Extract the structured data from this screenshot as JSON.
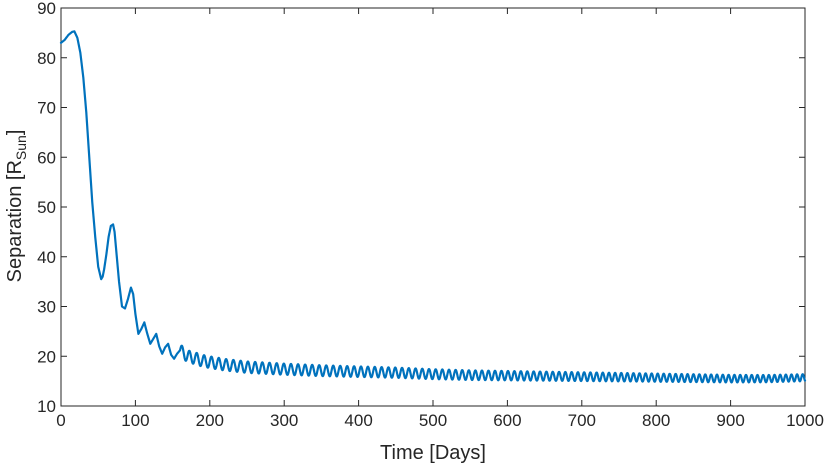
{
  "chart_data": {
    "type": "line",
    "xlabel": "Time [Days]",
    "ylabel": {
      "text": "Separation [R",
      "subscript": "Sun",
      "suffix": "]"
    },
    "xlim": [
      0,
      1000
    ],
    "ylim": [
      10,
      90
    ],
    "xticks": [
      0,
      100,
      200,
      300,
      400,
      500,
      600,
      700,
      800,
      900,
      1000
    ],
    "yticks": [
      10,
      20,
      30,
      40,
      50,
      60,
      70,
      80,
      90
    ],
    "grid": false,
    "line_color": "#0072BD",
    "series": [
      {
        "x": [
          0,
          5,
          10,
          15,
          18,
          22,
          26,
          30,
          34,
          38,
          42,
          46,
          50,
          54,
          56,
          58,
          61,
          64,
          67,
          70,
          72,
          75,
          78,
          82,
          86,
          90,
          94,
          97,
          100,
          104,
          108,
          112,
          116,
          120,
          124,
          128,
          132,
          136,
          140,
          144,
          148,
          152,
          156,
          160,
          170,
          180,
          190,
          200,
          220,
          250,
          300,
          350,
          400,
          450,
          500,
          550,
          600,
          650,
          700,
          750,
          800,
          850,
          900,
          950,
          1000
        ],
        "y": [
          83.0,
          83.6,
          84.6,
          85.2,
          85.3,
          84.0,
          81.0,
          76.0,
          69.0,
          60.0,
          51.0,
          44.0,
          38.0,
          35.5,
          36.0,
          37.5,
          40.5,
          44.0,
          46.2,
          46.5,
          45.0,
          40.0,
          35.0,
          30.0,
          29.6,
          31.5,
          33.8,
          32.5,
          28.5,
          24.5,
          25.5,
          26.8,
          24.5,
          22.5,
          23.5,
          24.5,
          22.0,
          20.5,
          21.8,
          22.5,
          20.3,
          19.5,
          20.5,
          21.2,
          20.0,
          19.6,
          19.1,
          18.8,
          18.3,
          17.8,
          17.4,
          17.1,
          16.9,
          16.7,
          16.4,
          16.2,
          16.1,
          16.0,
          15.9,
          15.8,
          15.7,
          15.6,
          15.5,
          15.5,
          15.7
        ]
      }
    ],
    "oscillation": [
      {
        "from": 160,
        "to": 1000,
        "amplitude_start": 1.2,
        "amplitude_end": 0.7,
        "period_start": 10,
        "period_end": 7.5
      }
    ]
  }
}
